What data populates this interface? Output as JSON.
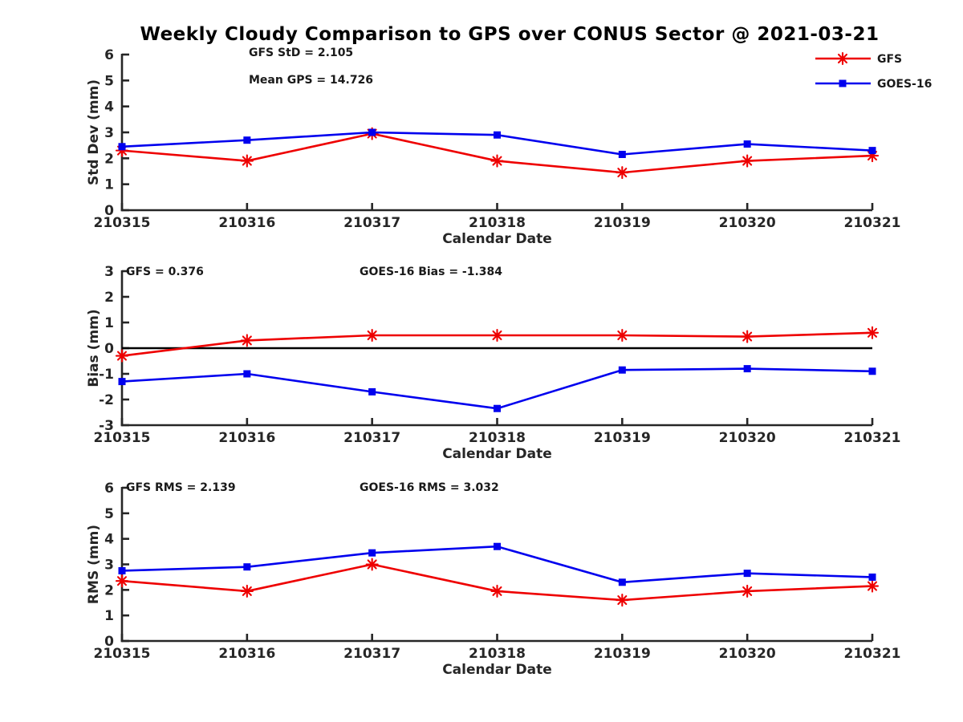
{
  "header": {
    "title": "Weekly Cloudy Comparison to GPS over CONUS Sector @ 2021-03-21"
  },
  "colors": {
    "gfs_red": "#ee0000",
    "goes_blue": "#0000ee",
    "axis": "#262626",
    "text": "#262626",
    "zero_line": "#000000",
    "background": "#ffffff"
  },
  "legend": {
    "items": [
      {
        "label": "GFS",
        "color": "#ee0000",
        "marker": "asterisk"
      },
      {
        "label": "GOES-16",
        "color": "#0000ee",
        "marker": "square"
      }
    ]
  },
  "chart_data": [
    {
      "type": "line",
      "ylabel": "Std Dev (mm)",
      "xlabel": "Calendar Date",
      "ylim": [
        0,
        6
      ],
      "ytick_step": 1,
      "grid": false,
      "zero_line": false,
      "categories": [
        "210315",
        "210316",
        "210317",
        "210318",
        "210319",
        "210320",
        "210321"
      ],
      "series": [
        {
          "name": "GFS",
          "color": "#ee0000",
          "marker": "asterisk",
          "values": [
            2.3,
            1.9,
            2.95,
            1.9,
            1.45,
            1.9,
            2.1
          ]
        },
        {
          "name": "GOES-16",
          "color": "#0000ee",
          "marker": "square",
          "values": [
            2.45,
            2.7,
            3.0,
            2.9,
            2.15,
            2.55,
            2.3
          ]
        }
      ],
      "annotations": [
        {
          "text": "GFS StD = 2.105"
        },
        {
          "text": "Mean GPS = 14.726"
        }
      ]
    },
    {
      "type": "line",
      "ylabel": "Bias (mm)",
      "xlabel": "Calendar Date",
      "ylim": [
        -3,
        3
      ],
      "ytick_step": 1,
      "grid": false,
      "zero_line": true,
      "categories": [
        "210315",
        "210316",
        "210317",
        "210318",
        "210319",
        "210320",
        "210321"
      ],
      "series": [
        {
          "name": "GFS",
          "color": "#ee0000",
          "marker": "asterisk",
          "values": [
            -0.3,
            0.3,
            0.5,
            0.5,
            0.5,
            0.45,
            0.6
          ]
        },
        {
          "name": "GOES-16",
          "color": "#0000ee",
          "marker": "square",
          "values": [
            -1.3,
            -1.0,
            -1.7,
            -2.35,
            -0.85,
            -0.8,
            -0.9
          ]
        }
      ],
      "annotations": [
        {
          "text": "GFS = 0.376"
        },
        {
          "text": "GOES-16 Bias  = -1.384"
        }
      ]
    },
    {
      "type": "line",
      "ylabel": "RMS (mm)",
      "xlabel": "Calendar Date",
      "ylim": [
        0,
        6
      ],
      "ytick_step": 1,
      "grid": false,
      "zero_line": false,
      "categories": [
        "210315",
        "210316",
        "210317",
        "210318",
        "210319",
        "210320",
        "210321"
      ],
      "series": [
        {
          "name": "GFS",
          "color": "#ee0000",
          "marker": "asterisk",
          "values": [
            2.35,
            1.95,
            3.0,
            1.95,
            1.6,
            1.95,
            2.15
          ]
        },
        {
          "name": "GOES-16",
          "color": "#0000ee",
          "marker": "square",
          "values": [
            2.75,
            2.9,
            3.45,
            3.7,
            2.3,
            2.65,
            2.5
          ]
        }
      ],
      "annotations": [
        {
          "text": "GFS RMS = 2.139"
        },
        {
          "text": "GOES-16 RMS = 3.032"
        }
      ]
    }
  ]
}
